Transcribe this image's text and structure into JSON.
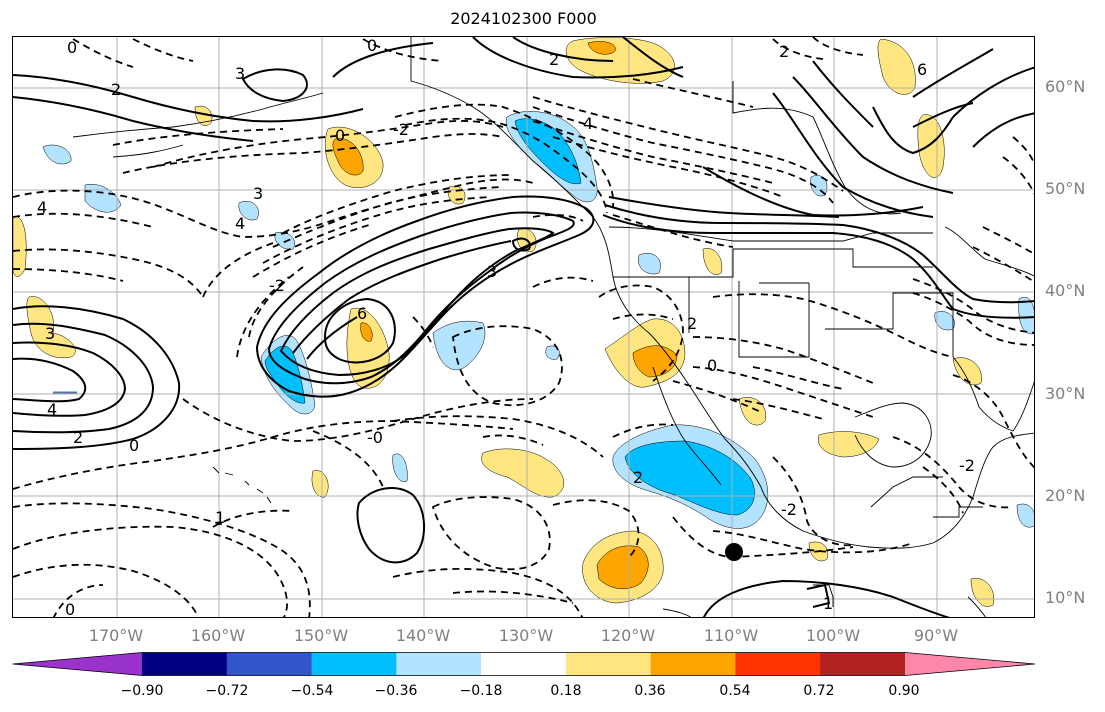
{
  "title": "2024102300 F000",
  "lat_labels": [
    "60°N",
    "50°N",
    "40°N",
    "30°N",
    "20°N",
    "10°N"
  ],
  "lon_labels": [
    "170°W",
    "160°W",
    "150°W",
    "140°W",
    "130°W",
    "120°W",
    "110°W",
    "100°W",
    "90°W"
  ],
  "colorbar": {
    "ticks": [
      "−0.90",
      "−0.72",
      "−0.54",
      "−0.36",
      "−0.18",
      "0.18",
      "0.36",
      "0.54",
      "0.72",
      "0.90"
    ],
    "colors": [
      "#9933cc",
      "#000080",
      "#3355cc",
      "#00bfff",
      "#b3e3ff",
      "#ffffff",
      "#ffe680",
      "#ffa500",
      "#ff3300",
      "#b22222",
      "#ff88aa"
    ]
  },
  "contour_labels": [
    "0",
    "2",
    "3",
    "0",
    "2",
    "2",
    "4",
    "6",
    "4",
    "3",
    "4",
    "0",
    "6",
    "3",
    "3",
    "-2",
    "2",
    "0",
    "4",
    "2",
    "-0",
    "1",
    "-2",
    "-2",
    "2",
    "0",
    "0",
    "1",
    "-2"
  ],
  "colors": {
    "line": "#000000",
    "grid": "#b0b0b0",
    "coast": "#000000"
  }
}
